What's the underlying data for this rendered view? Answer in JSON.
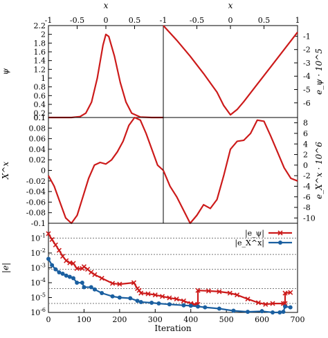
{
  "chart_data": [
    {
      "type": "line",
      "panel": "top-left",
      "xlabel": "x",
      "ylabel": "ψ",
      "xlim": [
        -1,
        1
      ],
      "ylim": [
        0.1,
        2.2
      ],
      "x_ticks": [
        "-1",
        "-0.5",
        "0",
        "0.5"
      ],
      "y_ticks": [
        "2.2",
        "2",
        "1.8",
        "1.6",
        "1.4",
        "1.2",
        "1",
        "0.8",
        "0.6",
        "0.4",
        "0.2",
        "0.1"
      ],
      "series": [
        {
          "color": "#cc1a1a",
          "x": [
            -1,
            -0.8,
            -0.6,
            -0.45,
            -0.35,
            -0.25,
            -0.15,
            -0.05,
            0,
            0.05,
            0.15,
            0.25,
            0.35,
            0.45,
            0.6,
            0.8,
            1
          ],
          "y": [
            0.1,
            0.1,
            0.1,
            0.12,
            0.2,
            0.45,
            1.0,
            1.75,
            2.0,
            1.95,
            1.5,
            0.9,
            0.45,
            0.2,
            0.11,
            0.1,
            0.1
          ]
        }
      ]
    },
    {
      "type": "line",
      "panel": "top-right",
      "xlabel": "x",
      "ylabel": "e_ψ · 10^5",
      "xlim": [
        -1,
        1
      ],
      "ylim": [
        -7.1,
        -0.2
      ],
      "x_ticks": [
        "-1",
        "-0.5",
        "0",
        "0.5",
        "1"
      ],
      "y_ticks": [
        "-1",
        "-2",
        "-3",
        "-4",
        "-5",
        "-6"
      ],
      "series": [
        {
          "color": "#cc1a1a",
          "x": [
            -1,
            -0.8,
            -0.6,
            -0.4,
            -0.2,
            -0.1,
            0,
            0.1,
            0.2,
            0.4,
            0.6,
            0.8,
            1
          ],
          "y": [
            -0.2,
            -1.3,
            -2.5,
            -3.8,
            -5.2,
            -6.2,
            -6.9,
            -6.5,
            -5.9,
            -4.6,
            -3.3,
            -2.0,
            -0.7
          ]
        }
      ]
    },
    {
      "type": "line",
      "panel": "middle-left",
      "ylabel": "X^x",
      "xlim": [
        -1,
        1
      ],
      "ylim": [
        -0.1,
        0.1
      ],
      "y_ticks": [
        "0.1",
        "0.08",
        "0.06",
        "0.04",
        "0.02",
        "0",
        "-0.02",
        "-0.04",
        "-0.06",
        "-0.08",
        "-0.1"
      ],
      "series": [
        {
          "color": "#cc1a1a",
          "x": [
            -1,
            -0.9,
            -0.8,
            -0.7,
            -0.6,
            -0.5,
            -0.4,
            -0.3,
            -0.2,
            -0.1,
            0,
            0.1,
            0.2,
            0.3,
            0.4,
            0.5,
            0.6,
            0.7,
            0.8,
            0.9,
            1
          ],
          "y": [
            -0.01,
            -0.03,
            -0.06,
            -0.09,
            -0.1,
            -0.085,
            -0.05,
            -0.015,
            0.01,
            0.015,
            0.012,
            0.02,
            0.035,
            0.055,
            0.085,
            0.1,
            0.095,
            0.07,
            0.04,
            0.01,
            0
          ]
        }
      ]
    },
    {
      "type": "line",
      "panel": "middle-right",
      "ylabel": "e_X^x · 10^6",
      "xlim": [
        -1,
        1
      ],
      "ylim": [
        -11,
        9
      ],
      "y_ticks": [
        "8",
        "6",
        "4",
        "2",
        "0",
        "-2",
        "-4",
        "-6",
        "-8",
        "-10"
      ],
      "series": [
        {
          "color": "#cc1a1a",
          "x": [
            -1,
            -0.9,
            -0.8,
            -0.7,
            -0.6,
            -0.5,
            -0.4,
            -0.3,
            -0.2,
            -0.1,
            0,
            0.1,
            0.2,
            0.3,
            0.4,
            0.5,
            0.6,
            0.7,
            0.8,
            0.9,
            1
          ],
          "y": [
            -1,
            -4,
            -6,
            -8.5,
            -11,
            -9.5,
            -7.5,
            -8.2,
            -6.5,
            -2,
            3,
            4.5,
            4.7,
            6,
            8.5,
            8.3,
            5.5,
            2.5,
            -0.5,
            -2.5,
            -3
          ]
        }
      ]
    },
    {
      "type": "line",
      "panel": "bottom",
      "xlabel": "Iteration",
      "ylabel": "|e|",
      "xlim": [
        0,
        700
      ],
      "ylim": [
        1e-06,
        1
      ],
      "y_scale": "log",
      "x_ticks": [
        "0",
        "100",
        "200",
        "300",
        "400",
        "500",
        "600",
        "700"
      ],
      "y_ticks": [
        "10^-6",
        "10^-5",
        "10^-4",
        "10^-3",
        "10^-2",
        "10^-1"
      ],
      "legend_position": "top-right",
      "series": [
        {
          "name": "|e_ψ|",
          "color": "#cc1a1a",
          "marker": "x",
          "x": [
            0,
            10,
            20,
            30,
            40,
            50,
            60,
            70,
            80,
            95,
            100,
            110,
            120,
            130,
            150,
            180,
            200,
            240,
            250,
            255,
            260,
            280,
            300,
            320,
            340,
            360,
            380,
            400,
            410,
            420,
            420,
            450,
            480,
            510,
            530,
            560,
            590,
            610,
            630,
            660,
            665,
            665,
            680
          ],
          "y": [
            0.2,
            0.08,
            0.035,
            0.015,
            0.006,
            0.003,
            0.0022,
            0.002,
            0.0009,
            0.0009,
            0.0012,
            0.0008,
            0.0005,
            0.00035,
            0.0002,
            9e-05,
            8e-05,
            0.0001,
            4e-05,
            3e-05,
            2e-05,
            1.8e-05,
            1.5e-05,
            1.2e-05,
            9.5e-06,
            8e-06,
            6e-06,
            4e-06,
            3.5e-06,
            3.5e-06,
            3e-05,
            2.8e-05,
            2.5e-05,
            2e-05,
            1.5e-05,
            8e-06,
            4.5e-06,
            3.5e-06,
            4e-06,
            4e-06,
            4e-06,
            2e-05,
            2.2e-05
          ]
        },
        {
          "name": "|e_X^x|",
          "color": "#1a5fa0",
          "marker": "o",
          "x": [
            0,
            10,
            20,
            30,
            40,
            50,
            60,
            70,
            80,
            95,
            100,
            120,
            130,
            150,
            180,
            200,
            230,
            250,
            260,
            290,
            310,
            340,
            380,
            400,
            420,
            440,
            480,
            520,
            560,
            600,
            630,
            650,
            660,
            665,
            680
          ],
          "y": [
            0.004,
            0.0015,
            0.0008,
            0.0005,
            0.0004,
            0.0003,
            0.00025,
            0.0002,
            0.0001,
            0.0001,
            5e-05,
            5e-05,
            3.5e-05,
            2e-05,
            1.2e-05,
            1e-05,
            9e-06,
            6e-06,
            5e-06,
            4.5e-06,
            4e-06,
            3.5e-06,
            3e-06,
            2.8e-06,
            2.5e-06,
            2.2e-06,
            1.8e-06,
            1.3e-06,
            1.1e-06,
            1.2e-06,
            1e-06,
            1e-06,
            1.1e-06,
            2.5e-06,
            2.2e-06
          ]
        }
      ],
      "reference_lines": [
        0.1,
        0.008,
        0.0008,
        4e-05,
        4e-06
      ]
    }
  ]
}
